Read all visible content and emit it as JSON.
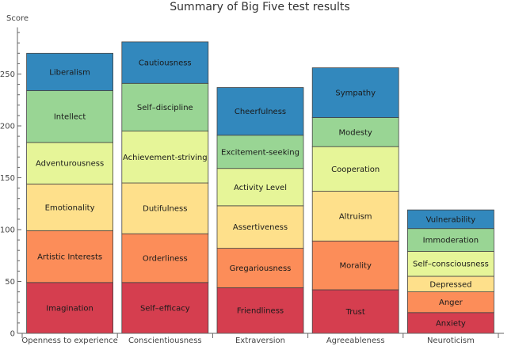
{
  "chart_data": {
    "type": "bar",
    "stacked": true,
    "title": "Summary of Big Five test results",
    "xlabel": "",
    "ylabel": "Score",
    "ylim": [
      0,
      295
    ],
    "yticks": [
      0,
      50,
      100,
      150,
      200,
      250
    ],
    "yminor_step": 10,
    "grid": false,
    "legend": "none",
    "categories": [
      "Openness to experience",
      "Conscientiousness",
      "Extraversion",
      "Agreeableness",
      "Neuroticism"
    ],
    "palette": [
      "#D53E4F",
      "#FC8D59",
      "#FEE08B",
      "#E6F598",
      "#99D594",
      "#3288BD"
    ],
    "stacks": [
      {
        "category": "Openness to experience",
        "segments": [
          {
            "label": "Imagination",
            "value": 49
          },
          {
            "label": "Artistic Interests",
            "value": 50
          },
          {
            "label": "Emotionality",
            "value": 45
          },
          {
            "label": "Adventurousness",
            "value": 40
          },
          {
            "label": "Intellect",
            "value": 50
          },
          {
            "label": "Liberalism",
            "value": 36
          }
        ]
      },
      {
        "category": "Conscientiousness",
        "segments": [
          {
            "label": "Self–efficacy",
            "value": 49
          },
          {
            "label": "Orderliness",
            "value": 47
          },
          {
            "label": "Dutifulness",
            "value": 49
          },
          {
            "label": "Achievement-striving",
            "value": 50
          },
          {
            "label": "Self–discipline",
            "value": 46
          },
          {
            "label": "Cautiousness",
            "value": 40
          }
        ]
      },
      {
        "category": "Extraversion",
        "segments": [
          {
            "label": "Friendliness",
            "value": 44
          },
          {
            "label": "Gregariousness",
            "value": 38
          },
          {
            "label": "Assertiveness",
            "value": 41
          },
          {
            "label": "Activity Level",
            "value": 36
          },
          {
            "label": "Excitement-seeking",
            "value": 32
          },
          {
            "label": "Cheerfulness",
            "value": 46
          }
        ]
      },
      {
        "category": "Agreeableness",
        "segments": [
          {
            "label": "Trust",
            "value": 42
          },
          {
            "label": "Morality",
            "value": 47
          },
          {
            "label": "Altruism",
            "value": 48
          },
          {
            "label": "Cooperation",
            "value": 43
          },
          {
            "label": "Modesty",
            "value": 28
          },
          {
            "label": "Sympathy",
            "value": 48
          }
        ]
      },
      {
        "category": "Neuroticism",
        "segments": [
          {
            "label": "Anxiety",
            "value": 20
          },
          {
            "label": "Anger",
            "value": 20
          },
          {
            "label": "Depressed",
            "value": 15
          },
          {
            "label": "Self–consciousness",
            "value": 24
          },
          {
            "label": "Immoderation",
            "value": 22
          },
          {
            "label": "Vulnerability",
            "value": 18
          }
        ]
      }
    ]
  }
}
